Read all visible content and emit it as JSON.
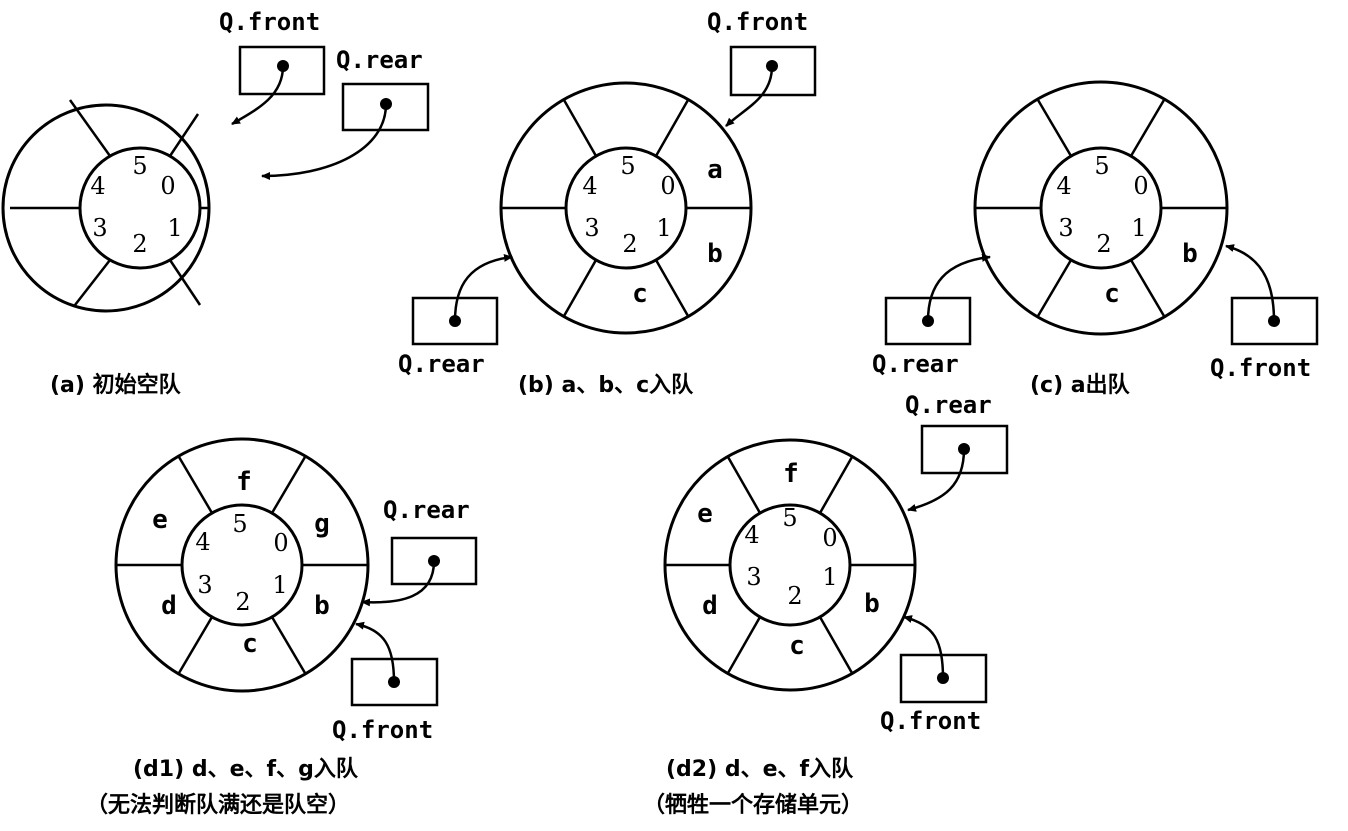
{
  "pointer_labels": {
    "front": "Q.front",
    "rear": "Q.rear"
  },
  "diagrams": [
    {
      "id": "a",
      "slot_numbers": [
        "0",
        "1",
        "2",
        "3",
        "4",
        "5"
      ],
      "contents": [
        "",
        "",
        "",
        "",
        "",
        ""
      ],
      "caption": [
        "(a) 初始空队"
      ]
    },
    {
      "id": "b",
      "slot_numbers": [
        "0",
        "1",
        "2",
        "3",
        "4",
        "5"
      ],
      "contents": [
        "a",
        "b",
        "c",
        "",
        "",
        ""
      ],
      "caption": [
        "(b) a、b、c入队"
      ]
    },
    {
      "id": "c",
      "slot_numbers": [
        "0",
        "1",
        "2",
        "3",
        "4",
        "5"
      ],
      "contents": [
        "",
        "b",
        "c",
        "",
        "",
        ""
      ],
      "caption": [
        "(c) a出队"
      ]
    },
    {
      "id": "d1",
      "slot_numbers": [
        "0",
        "1",
        "2",
        "3",
        "4",
        "5"
      ],
      "contents": [
        "g",
        "b",
        "c",
        "d",
        "e",
        "f"
      ],
      "caption": [
        "(d1) d、e、f、g入队",
        "（无法判断队满还是队空）"
      ]
    },
    {
      "id": "d2",
      "slot_numbers": [
        "0",
        "1",
        "2",
        "3",
        "4",
        "5"
      ],
      "contents": [
        "",
        "b",
        "c",
        "d",
        "e",
        "f"
      ],
      "caption": [
        "(d2) d、e、f入队",
        "（牺牲一个存储单元）"
      ]
    }
  ],
  "colors": {
    "ink": "#000000",
    "paper": "#ffffff"
  }
}
